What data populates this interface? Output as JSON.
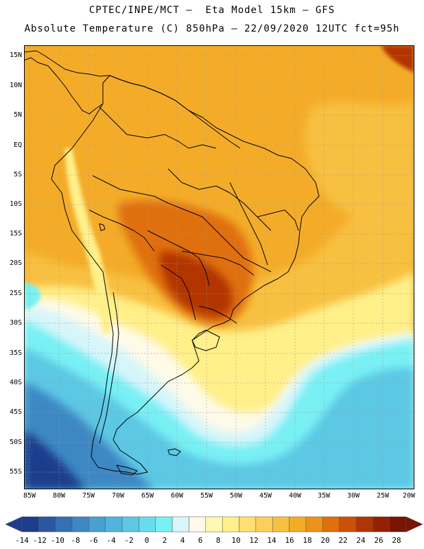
{
  "header": {
    "title_line1": "CPTEC/INPE/MCT –  Eta Model 15km – GFS",
    "title_line2": "Absolute Temperature (C) 850hPa – 22/09/2020 12UTC fct=95h"
  },
  "axes": {
    "lat_labels": [
      "15N",
      "10N",
      "5N",
      "EQ",
      "5S",
      "10S",
      "15S",
      "20S",
      "25S",
      "30S",
      "35S",
      "40S",
      "45S",
      "50S",
      "55S"
    ],
    "lon_labels": [
      "85W",
      "80W",
      "75W",
      "70W",
      "65W",
      "60W",
      "55W",
      "50W",
      "45W",
      "40W",
      "35W",
      "30W",
      "25W",
      "20W"
    ]
  },
  "legend": {
    "labels": [
      "-14",
      "-12",
      "-10",
      "-8",
      "-6",
      "-4",
      "-2",
      "0",
      "2",
      "4",
      "6",
      "8",
      "10",
      "12",
      "14",
      "16",
      "18",
      "20",
      "22",
      "24",
      "26",
      "28"
    ],
    "colors": [
      "#1e3c8c",
      "#2a56a4",
      "#3470b4",
      "#3c88c4",
      "#46a0d0",
      "#52b4dc",
      "#5cc8e4",
      "#68dcec",
      "#78f0f4",
      "#d6f6fa",
      "#fffae8",
      "#fff8b0",
      "#fff08a",
      "#ffe070",
      "#fcd058",
      "#f8c040",
      "#f4ac28",
      "#ec9218",
      "#e0700c",
      "#cc5006",
      "#b23404",
      "#962004",
      "#7a1404"
    ]
  },
  "colors": {
    "cold_dark": "#1e3c8c",
    "cold_mid": "#3c88c4",
    "cyan": "#5cc8e4",
    "bright_cyan": "#78f0f4",
    "pale_cyan": "#d6f6fa",
    "cream": "#fffae8",
    "yellow": "#fff08a",
    "gold": "#f8c040",
    "orange": "#f4ac28",
    "dark_orange": "#e0700c",
    "red_brown": "#b23404",
    "coastline": "#000000"
  }
}
